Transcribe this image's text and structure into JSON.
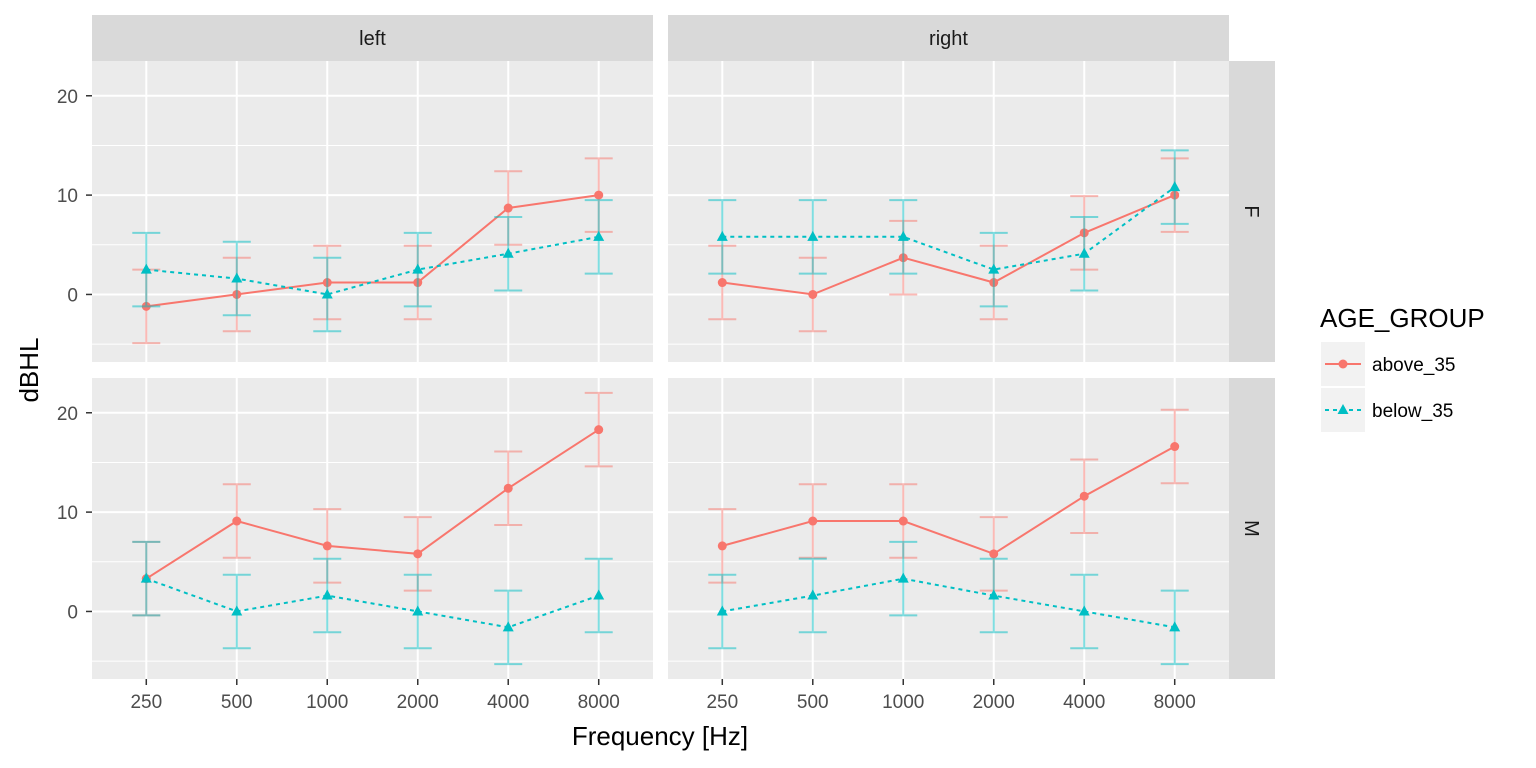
{
  "chart_data": {
    "type": "line",
    "xlabel": "Frequency [Hz]",
    "ylabel": "dBHL",
    "x_categories": [
      "250",
      "500",
      "1000",
      "2000",
      "4000",
      "8000"
    ],
    "ylim": [
      -6.8,
      23.5
    ],
    "y_ticks": [
      0,
      10,
      20
    ],
    "grid": true,
    "facet_columns": [
      "left",
      "right"
    ],
    "facet_rows": [
      "F",
      "M"
    ],
    "legend": {
      "title": "AGE_GROUP",
      "position": "right",
      "items": [
        {
          "label": "above_35",
          "color": "#F8766D",
          "shape": "circle",
          "linetype": "solid"
        },
        {
          "label": "below_35",
          "color": "#00BFC4",
          "shape": "triangle",
          "linetype": "dashed"
        }
      ]
    },
    "panels": [
      {
        "column": "left",
        "row": "F",
        "series": [
          {
            "name": "above_35",
            "values": [
              -1.2,
              0.0,
              1.2,
              1.2,
              8.7,
              10.0
            ],
            "err": [
              3.7,
              3.7,
              3.7,
              3.7,
              3.7,
              3.7
            ]
          },
          {
            "name": "below_35",
            "values": [
              2.5,
              1.6,
              0.0,
              2.5,
              4.1,
              5.8
            ],
            "err": [
              3.7,
              3.7,
              3.7,
              3.7,
              3.7,
              3.7
            ]
          }
        ]
      },
      {
        "column": "right",
        "row": "F",
        "series": [
          {
            "name": "above_35",
            "values": [
              1.2,
              0.0,
              3.7,
              1.2,
              6.2,
              10.0
            ],
            "err": [
              3.7,
              3.7,
              3.7,
              3.7,
              3.7,
              3.7
            ]
          },
          {
            "name": "below_35",
            "values": [
              5.8,
              5.8,
              5.8,
              2.5,
              4.1,
              10.8
            ],
            "err": [
              3.7,
              3.7,
              3.7,
              3.7,
              3.7,
              3.7
            ]
          }
        ]
      },
      {
        "column": "left",
        "row": "M",
        "series": [
          {
            "name": "above_35",
            "values": [
              3.3,
              9.1,
              6.6,
              5.8,
              12.4,
              18.3
            ],
            "err": [
              3.7,
              3.7,
              3.7,
              3.7,
              3.7,
              3.7
            ]
          },
          {
            "name": "below_35",
            "values": [
              3.3,
              0.0,
              1.6,
              0.0,
              -1.6,
              1.6
            ],
            "err": [
              3.7,
              3.7,
              3.7,
              3.7,
              3.7,
              3.7
            ]
          }
        ]
      },
      {
        "column": "right",
        "row": "M",
        "series": [
          {
            "name": "above_35",
            "values": [
              6.6,
              9.1,
              9.1,
              5.8,
              11.6,
              16.6
            ],
            "err": [
              3.7,
              3.7,
              3.7,
              3.7,
              3.7,
              3.7
            ]
          },
          {
            "name": "below_35",
            "values": [
              0.0,
              1.6,
              3.3,
              1.6,
              0.0,
              -1.6
            ],
            "err": [
              3.7,
              3.7,
              3.7,
              3.7,
              3.7,
              3.7
            ]
          }
        ]
      }
    ]
  }
}
